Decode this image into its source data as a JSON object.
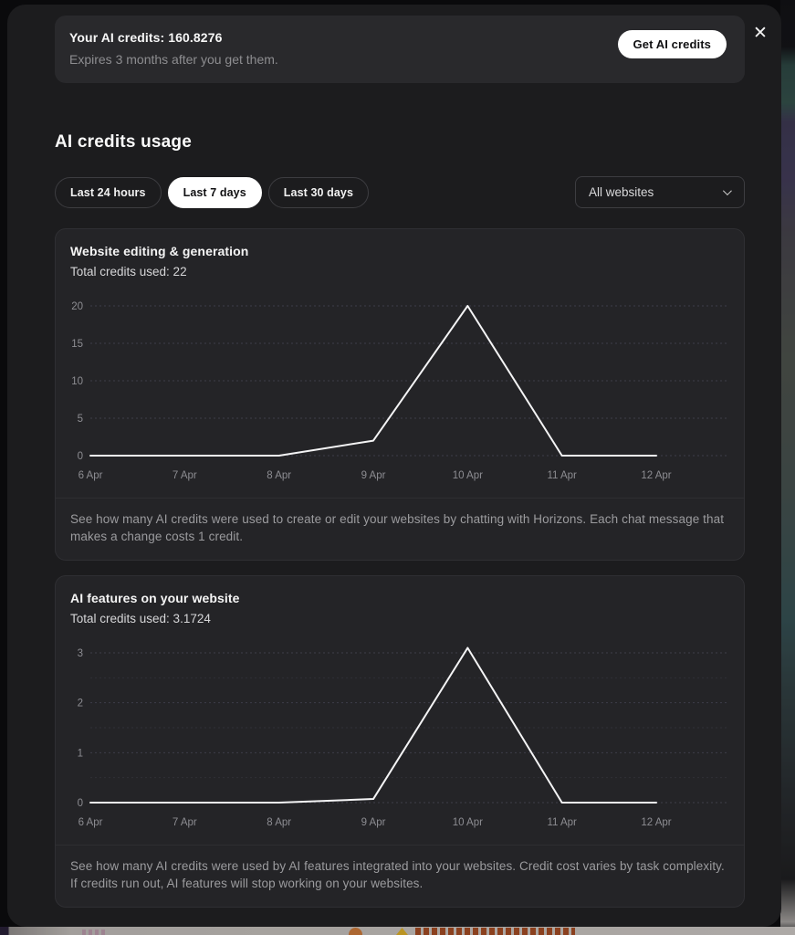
{
  "banner": {
    "title": "Your AI credits: 160.8276",
    "subtitle": "Expires 3 months after you get them.",
    "button_label": "Get AI credits"
  },
  "close_label": "✕",
  "section": {
    "title": "AI credits usage"
  },
  "filters": {
    "options": [
      "Last 24 hours",
      "Last 7 days",
      "Last 30 days"
    ],
    "active": "Last 7 days"
  },
  "website_filter": {
    "selected": "All websites"
  },
  "colors": {
    "line": "#f4f4f5",
    "grid": "#41414c",
    "axis_text": "#8d8d92",
    "active_pill_bg": "#ffffff",
    "modal_bg": "#1c1c1e",
    "card_bg": "#242427"
  },
  "cards": [
    {
      "title": "Website editing & generation",
      "subtitle": "Total credits used: 22",
      "footer": "See how many AI credits were used to create or edit your websites by chatting with Horizons. Each chat message that makes a change costs 1 credit."
    },
    {
      "title": "AI features on your website",
      "subtitle": "Total credits used: 3.1724",
      "footer": "See how many AI credits were used by AI features integrated into your websites. Credit cost varies by task complexity. If credits run out, AI features will stop working on your websites."
    }
  ],
  "chart_data": [
    {
      "type": "line",
      "title": "Website editing & generation",
      "categories": [
        "6 Apr",
        "7 Apr",
        "8 Apr",
        "9 Apr",
        "10 Apr",
        "11 Apr",
        "12 Apr"
      ],
      "values": [
        0,
        0,
        0,
        2,
        20,
        0,
        0
      ],
      "yticks": [
        0,
        5,
        10,
        15,
        20
      ],
      "yminor": [],
      "ylim": [
        0,
        20
      ],
      "xlabel": "",
      "ylabel": "",
      "grid": true,
      "legend": false
    },
    {
      "type": "line",
      "title": "AI features on your website",
      "categories": [
        "6 Apr",
        "7 Apr",
        "8 Apr",
        "9 Apr",
        "10 Apr",
        "11 Apr",
        "12 Apr"
      ],
      "values": [
        0,
        0,
        0,
        0.0724,
        3.1,
        0,
        0
      ],
      "yticks": [
        0,
        1,
        2,
        3
      ],
      "yminor": [
        0.5,
        1.5,
        2.5
      ],
      "ylim": [
        0,
        3.1
      ],
      "xlabel": "",
      "ylabel": "",
      "grid": true,
      "legend": false
    }
  ]
}
